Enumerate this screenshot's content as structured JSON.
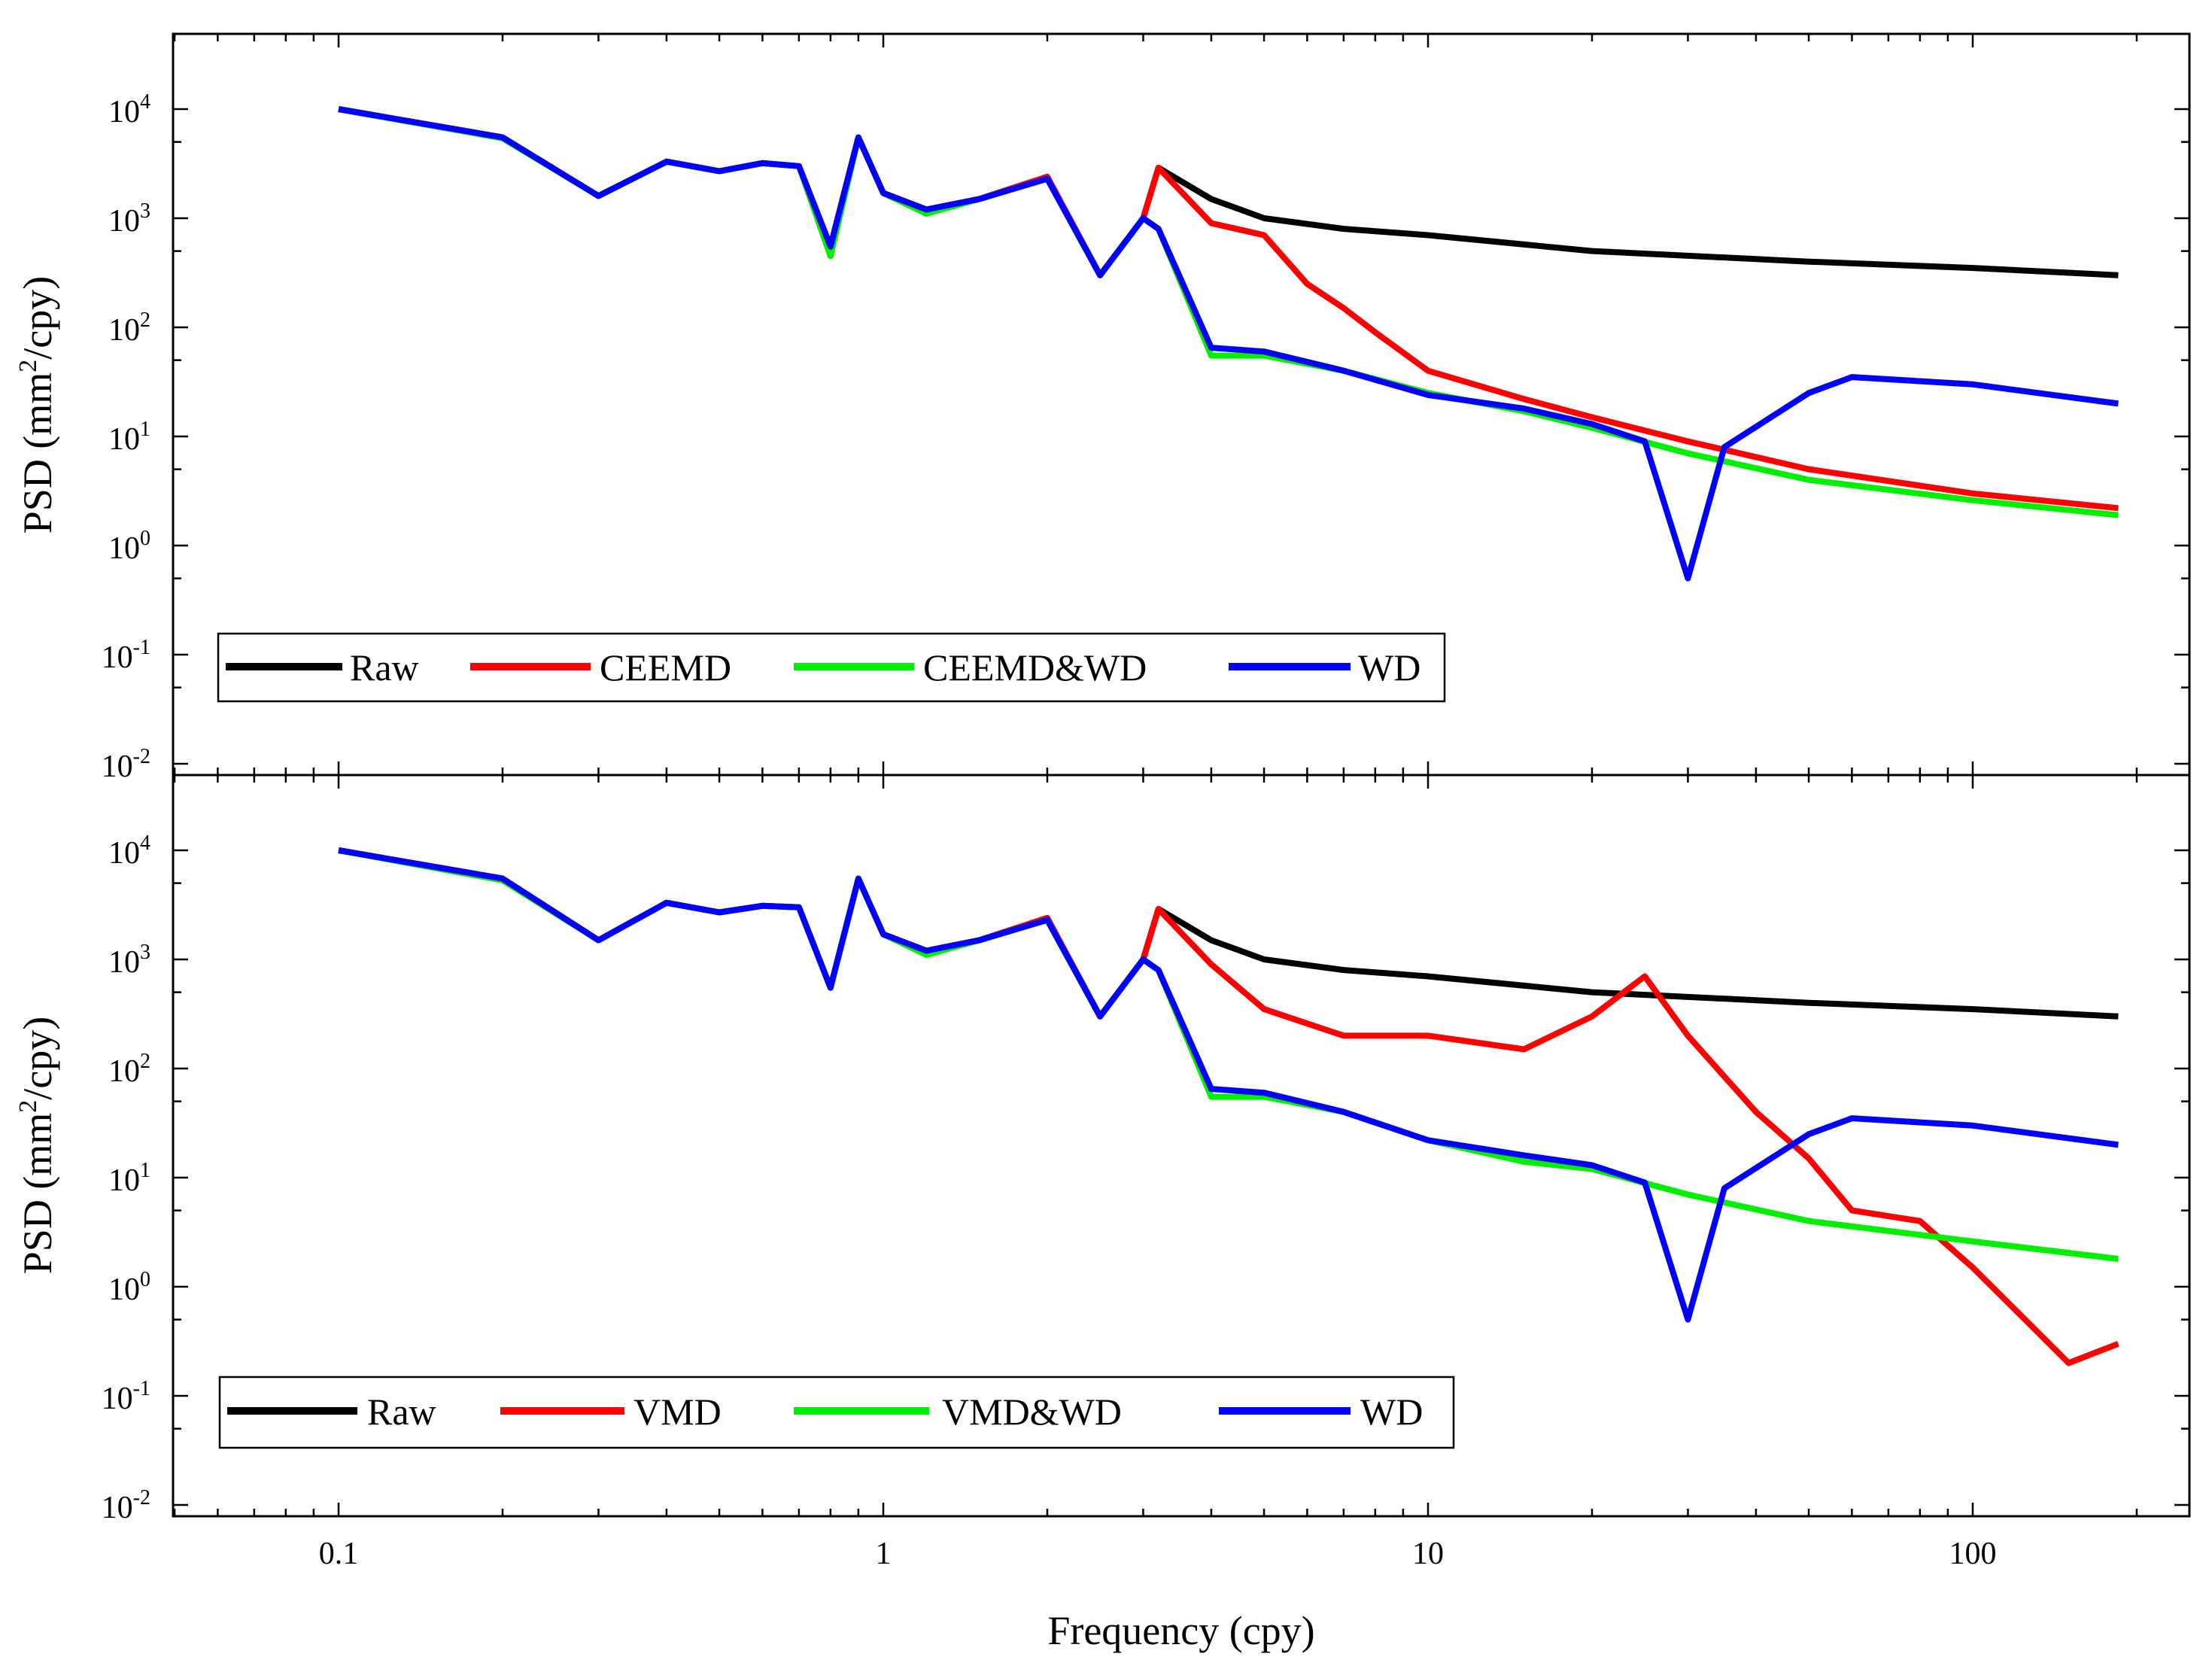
{
  "chart_data": [
    {
      "type": "line",
      "panel": "top",
      "xscale": "log",
      "yscale": "log",
      "xlim": [
        0.05,
        220
      ],
      "ylim": [
        0.01,
        50000
      ],
      "ylabel_main": "PSD (mm",
      "ylabel_sup": "2",
      "ylabel_tail": "/cpy)",
      "yticks": [
        {
          "value": 10000,
          "base": "10",
          "exp": "4"
        },
        {
          "value": 1000,
          "base": "10",
          "exp": "3"
        },
        {
          "value": 100,
          "base": "10",
          "exp": "2"
        },
        {
          "value": 10,
          "base": "10",
          "exp": "1"
        },
        {
          "value": 1,
          "base": "10",
          "exp": "0"
        },
        {
          "value": 0.1,
          "base": "10",
          "exp": "-1"
        },
        {
          "value": 0.01,
          "base": "10",
          "exp": "-2"
        }
      ],
      "legend": [
        "Raw",
        "CEEMD",
        "CEEMD&WD",
        "WD"
      ],
      "legend_position": "bottom-left",
      "series": [
        {
          "name": "Raw",
          "color": "#000000",
          "x": [
            0.1,
            0.2,
            0.3,
            0.4,
            0.5,
            0.6,
            0.7,
            0.8,
            0.9,
            1.0,
            1.2,
            1.5,
            2.0,
            2.5,
            3.0,
            3.2,
            4.0,
            5.0,
            7.0,
            10,
            20,
            50,
            100,
            185
          ],
          "y": [
            10000,
            5500,
            1600,
            3300,
            2700,
            3200,
            3000,
            550,
            5500,
            1700,
            1200,
            1500,
            2400,
            300,
            1000,
            2900,
            1500,
            1000,
            800,
            700,
            500,
            400,
            350,
            300
          ]
        },
        {
          "name": "CEEMD",
          "color": "#ff0000",
          "x": [
            0.1,
            0.2,
            0.3,
            0.4,
            0.5,
            0.6,
            0.7,
            0.8,
            0.9,
            1.0,
            1.2,
            1.5,
            2.0,
            2.5,
            3.0,
            3.2,
            4.0,
            5.0,
            6.0,
            7.0,
            8.0,
            10,
            15,
            20,
            30,
            50,
            100,
            185
          ],
          "y": [
            10000,
            5500,
            1600,
            3300,
            2700,
            3200,
            3000,
            550,
            5500,
            1700,
            1200,
            1500,
            2400,
            300,
            1000,
            2900,
            900,
            700,
            250,
            150,
            90,
            40,
            22,
            15,
            9,
            5,
            3,
            2.2
          ]
        },
        {
          "name": "CEEMD&WD",
          "color": "#00ee00",
          "x": [
            0.1,
            0.2,
            0.3,
            0.4,
            0.5,
            0.6,
            0.7,
            0.8,
            0.9,
            1.0,
            1.2,
            1.5,
            2.0,
            2.5,
            3.0,
            3.2,
            4.0,
            5.0,
            7.0,
            10,
            15,
            20,
            30,
            50,
            100,
            185
          ],
          "y": [
            10000,
            5400,
            1600,
            3300,
            2700,
            3200,
            3000,
            450,
            5500,
            1700,
            1100,
            1500,
            2300,
            300,
            1000,
            800,
            55,
            55,
            40,
            25,
            17,
            12,
            7,
            4,
            2.6,
            1.9
          ]
        },
        {
          "name": "WD",
          "color": "#0000ff",
          "x": [
            0.1,
            0.2,
            0.3,
            0.4,
            0.5,
            0.6,
            0.7,
            0.8,
            0.9,
            1.0,
            1.2,
            1.5,
            2.0,
            2.5,
            3.0,
            3.2,
            4.0,
            5.0,
            7.0,
            10,
            15,
            20,
            25,
            30,
            35,
            50,
            60,
            100,
            185
          ],
          "y": [
            10000,
            5500,
            1600,
            3300,
            2700,
            3200,
            3000,
            550,
            5500,
            1700,
            1200,
            1500,
            2300,
            300,
            1000,
            800,
            65,
            60,
            40,
            24,
            18,
            13,
            9,
            0.5,
            8,
            25,
            35,
            30,
            20
          ]
        }
      ]
    },
    {
      "type": "line",
      "panel": "bottom",
      "xscale": "log",
      "yscale": "log",
      "xlim": [
        0.05,
        220
      ],
      "ylim": [
        0.01,
        50000
      ],
      "xlabel": "Frequency (cpy)",
      "xticks": [
        {
          "value": 0.1,
          "label": "0.1"
        },
        {
          "value": 1,
          "label": "1"
        },
        {
          "value": 10,
          "label": "10"
        },
        {
          "value": 100,
          "label": "100"
        }
      ],
      "ylabel_main": "PSD (mm",
      "ylabel_sup": "2",
      "ylabel_tail": "/cpy)",
      "yticks": [
        {
          "value": 10000,
          "base": "10",
          "exp": "4"
        },
        {
          "value": 1000,
          "base": "10",
          "exp": "3"
        },
        {
          "value": 100,
          "base": "10",
          "exp": "2"
        },
        {
          "value": 10,
          "base": "10",
          "exp": "1"
        },
        {
          "value": 1,
          "base": "10",
          "exp": "0"
        },
        {
          "value": 0.1,
          "base": "10",
          "exp": "-1"
        },
        {
          "value": 0.01,
          "base": "10",
          "exp": "-2"
        }
      ],
      "legend": [
        "Raw",
        "VMD",
        "VMD&WD",
        "WD"
      ],
      "legend_position": "bottom-left",
      "series": [
        {
          "name": "Raw",
          "color": "#000000",
          "x": [
            0.1,
            0.2,
            0.3,
            0.4,
            0.5,
            0.6,
            0.7,
            0.8,
            0.9,
            1.0,
            1.2,
            1.5,
            2.0,
            2.5,
            3.0,
            3.2,
            4.0,
            5.0,
            7.0,
            10,
            20,
            50,
            100,
            185
          ],
          "y": [
            10000,
            5500,
            1500,
            3300,
            2700,
            3100,
            3000,
            550,
            5500,
            1700,
            1200,
            1500,
            2400,
            300,
            1000,
            2900,
            1500,
            1000,
            800,
            700,
            500,
            400,
            350,
            300
          ]
        },
        {
          "name": "VMD",
          "color": "#ff0000",
          "x": [
            0.1,
            0.2,
            0.3,
            0.4,
            0.5,
            0.6,
            0.7,
            0.8,
            0.9,
            1.0,
            1.2,
            1.5,
            2.0,
            2.5,
            3.0,
            3.2,
            4.0,
            5.0,
            7.0,
            10,
            15,
            20,
            25,
            30,
            40,
            50,
            60,
            80,
            100,
            150,
            185
          ],
          "y": [
            10000,
            5500,
            1500,
            3300,
            2700,
            3100,
            3000,
            550,
            5500,
            1700,
            1200,
            1500,
            2400,
            300,
            1000,
            2900,
            900,
            350,
            200,
            200,
            150,
            300,
            700,
            200,
            40,
            15,
            5,
            4,
            1.5,
            0.2,
            0.3
          ]
        },
        {
          "name": "VMD&WD",
          "color": "#00ee00",
          "x": [
            0.1,
            0.2,
            0.3,
            0.4,
            0.5,
            0.6,
            0.7,
            0.8,
            0.9,
            1.0,
            1.2,
            1.5,
            2.0,
            2.5,
            3.0,
            3.2,
            4.0,
            5.0,
            7.0,
            10,
            15,
            20,
            30,
            50,
            100,
            185
          ],
          "y": [
            10000,
            5300,
            1500,
            3300,
            2700,
            3100,
            3000,
            550,
            5500,
            1700,
            1100,
            1500,
            2300,
            300,
            1000,
            800,
            55,
            55,
            40,
            22,
            14,
            12,
            7,
            4,
            2.6,
            1.8
          ]
        },
        {
          "name": "WD",
          "color": "#0000ff",
          "x": [
            0.1,
            0.2,
            0.3,
            0.4,
            0.5,
            0.6,
            0.7,
            0.8,
            0.9,
            1.0,
            1.2,
            1.5,
            2.0,
            2.5,
            3.0,
            3.2,
            4.0,
            5.0,
            7.0,
            10,
            15,
            20,
            25,
            30,
            35,
            50,
            60,
            100,
            185
          ],
          "y": [
            10000,
            5500,
            1500,
            3300,
            2700,
            3100,
            3000,
            550,
            5500,
            1700,
            1200,
            1500,
            2300,
            300,
            1000,
            800,
            65,
            60,
            40,
            22,
            16,
            13,
            9,
            0.5,
            8,
            25,
            35,
            30,
            20
          ]
        }
      ]
    }
  ]
}
